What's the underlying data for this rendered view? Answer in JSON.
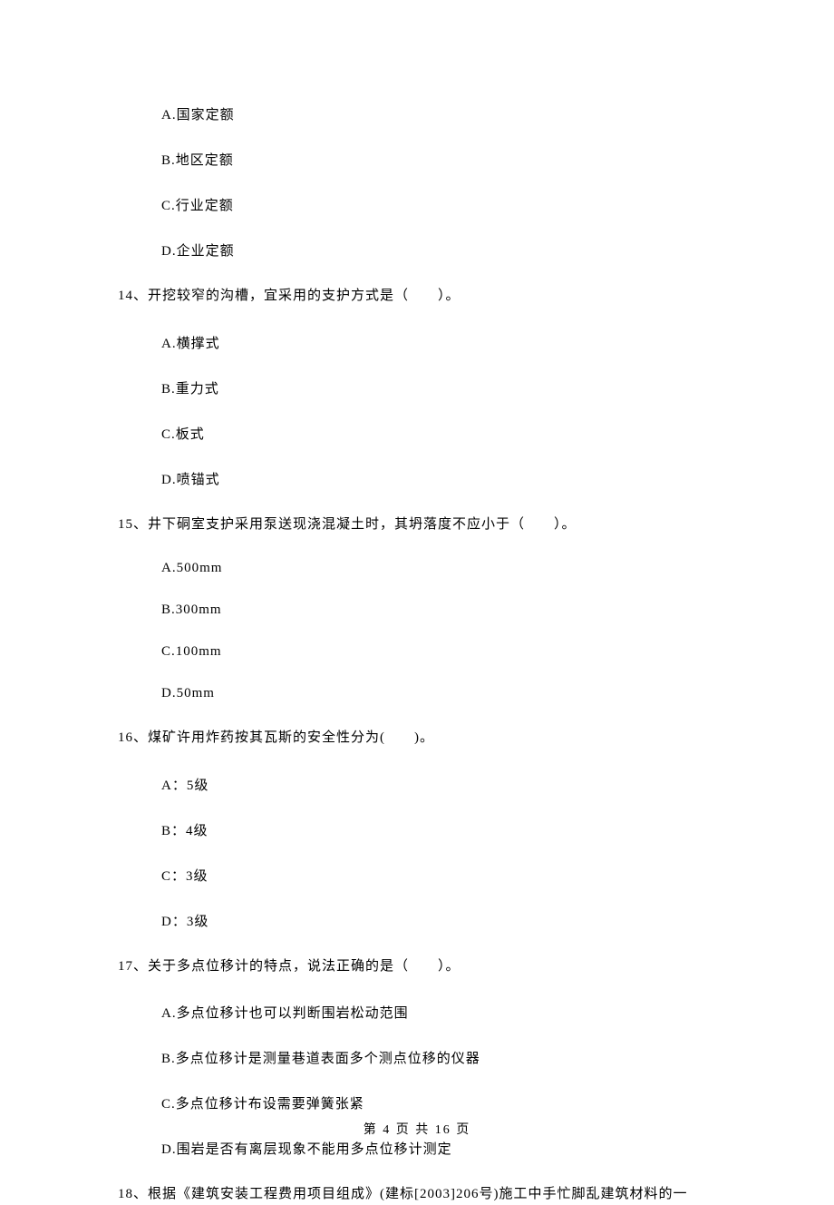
{
  "q13_options": {
    "a": "A.国家定额",
    "b": "B.地区定额",
    "c": "C.行业定额",
    "d": "D.企业定额"
  },
  "q14": {
    "text": "14、开挖较窄的沟槽，宜采用的支护方式是（　　）。",
    "options": {
      "a": "A.横撑式",
      "b": "B.重力式",
      "c": "C.板式",
      "d": "D.喷锚式"
    }
  },
  "q15": {
    "text": "15、井下硐室支护采用泵送现浇混凝土时，其坍落度不应小于（　　）。",
    "options": {
      "a": "A.500mm",
      "b": "B.300mm",
      "c": "C.100mm",
      "d": "D.50mm"
    }
  },
  "q16": {
    "text": "16、煤矿许用炸药按其瓦斯的安全性分为(　　)。",
    "options": {
      "a": "A：5级",
      "b": "B：4级",
      "c": "C：3级",
      "d": "D：3级"
    }
  },
  "q17": {
    "text": "17、关于多点位移计的特点，说法正确的是（　　）。",
    "options": {
      "a": "A.多点位移计也可以判断围岩松动范围",
      "b": "B.多点位移计是测量巷道表面多个测点位移的仪器",
      "c": "C.多点位移计布设需要弹簧张紧",
      "d": "D.围岩是否有离层现象不能用多点位移计测定"
    }
  },
  "q18": {
    "text": "18、根据《建筑安装工程费用项目组成》(建标[2003]206号)施工中手忙脚乱建筑材料的一"
  },
  "footer": "第 4 页 共 16 页"
}
